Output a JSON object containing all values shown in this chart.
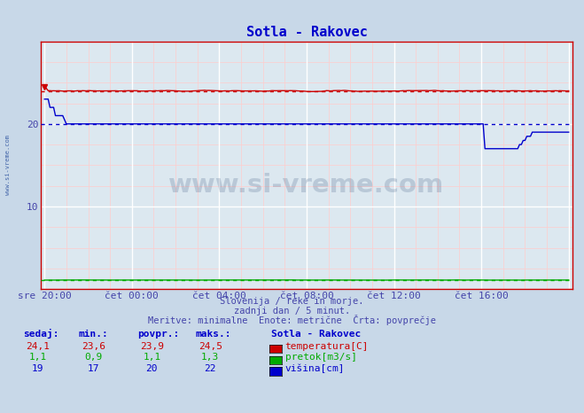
{
  "title": "Sotla - Rakovec",
  "bg_color": "#c8d8e8",
  "plot_bg_color": "#dce8f0",
  "title_color": "#0000cc",
  "tick_color": "#4444aa",
  "footer_color": "#4444aa",
  "xlim_min": 0,
  "xlim_max": 288,
  "ylim_min": 0,
  "ylim_max": 30,
  "ytick_vals": [
    10,
    20
  ],
  "xtick_positions": [
    0,
    48,
    96,
    144,
    192,
    240
  ],
  "xtick_labels": [
    "sre 20:00",
    "čet 00:00",
    "čet 04:00",
    "čet 08:00",
    "čet 12:00",
    "čet 16:00"
  ],
  "subtitle_lines": [
    "Slovenija / reke in morje.",
    "zadnji dan / 5 minut.",
    "Meritve: minimalne  Enote: metrične  Črta: povprečje"
  ],
  "legend_title": "Sotla - Rakovec",
  "legend_items": [
    {
      "label": "temperatura[C]",
      "color": "#cc0000"
    },
    {
      "label": "pretok[m3/s]",
      "color": "#00aa00"
    },
    {
      "label": "višina[cm]",
      "color": "#0000cc"
    }
  ],
  "table_headers": [
    "sedaj:",
    "min.:",
    "povpr.:",
    "maks.:"
  ],
  "table_rows": [
    [
      "24,1",
      "23,6",
      "23,9",
      "24,5"
    ],
    [
      "1,1",
      "0,9",
      "1,1",
      "1,3"
    ],
    [
      "19",
      "17",
      "20",
      "22"
    ]
  ],
  "watermark_text": "www.si-vreme.com",
  "watermark_color": "#1a3a6a",
  "sidebar_text": "www.si-vreme.com",
  "sidebar_color": "#4466aa",
  "temp_avg": 23.9,
  "flow_avg": 1.1,
  "height_avg": 20,
  "temp_color": "#cc0000",
  "flow_color": "#00aa00",
  "height_color": "#0000cc",
  "minor_grid_color": "#ffcccc",
  "major_grid_color": "#ffffff"
}
